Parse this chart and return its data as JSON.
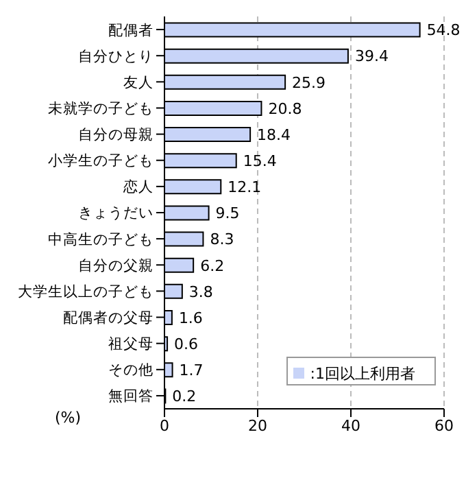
{
  "chart_data": {
    "type": "bar",
    "orientation": "horizontal",
    "xlabel": "(%)",
    "categories": [
      "配偶者",
      "自分ひとり",
      "友人",
      "未就学の子ども",
      "自分の母親",
      "小学生の子ども",
      "恋人",
      "きょうだい",
      "中高生の子ども",
      "自分の父親",
      "大学生以上の子ども",
      "配偶者の父母",
      "祖父母",
      "その他",
      "無回答"
    ],
    "series": [
      {
        "name": ":1回以上利用者",
        "color": "#c8d4f8",
        "values": [
          54.8,
          39.4,
          25.9,
          20.8,
          18.4,
          15.4,
          12.1,
          9.5,
          8.3,
          6.2,
          3.8,
          1.6,
          0.6,
          1.7,
          0.2
        ]
      }
    ],
    "xlim": [
      0,
      60
    ],
    "xticks": [
      0,
      20,
      40,
      60
    ],
    "grid": "x",
    "data_labels": true,
    "legend": "bottom right"
  }
}
